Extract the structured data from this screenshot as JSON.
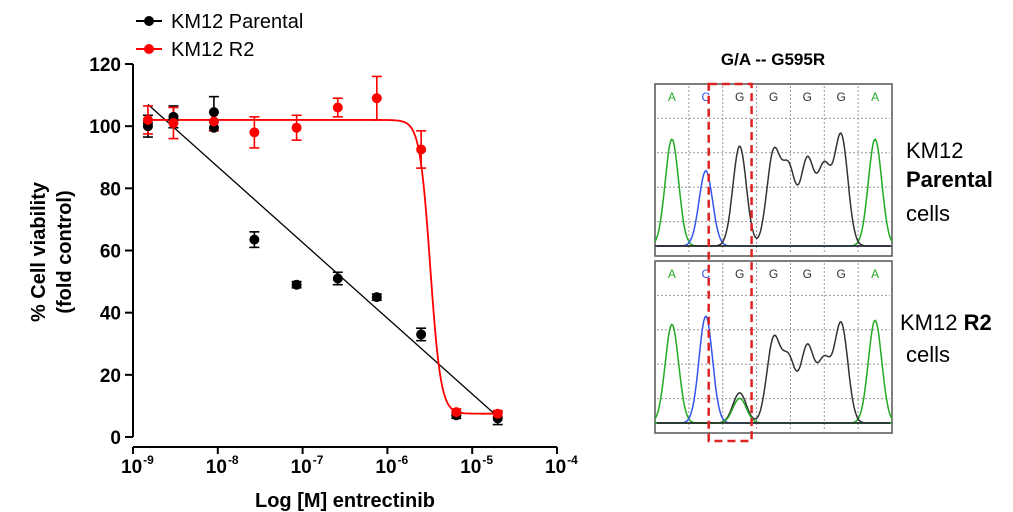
{
  "chart_data": [
    {
      "type": "scatter",
      "xlabel": "Log [M] entrectinib",
      "ylabel_line1": "% Cell viability",
      "ylabel_line2": "(fold control)",
      "x_scale": "log",
      "xlim": [
        1e-09,
        0.0001
      ],
      "ylim": [
        0,
        120
      ],
      "yticks": [
        "0",
        "20",
        "40",
        "60",
        "80",
        "100",
        "120"
      ],
      "xticks": [
        {
          "base": "10",
          "exp": "-9"
        },
        {
          "base": "10",
          "exp": "-8"
        },
        {
          "base": "10",
          "exp": "-7"
        },
        {
          "base": "10",
          "exp": "-6"
        },
        {
          "base": "10",
          "exp": "-5"
        },
        {
          "base": "10",
          "exp": "-4"
        }
      ],
      "legend_position": "top-left",
      "series": [
        {
          "name": "KM12 Parental",
          "color": "#000000",
          "x": [
            1.5e-09,
            3e-09,
            9e-09,
            2.7e-08,
            8.5e-08,
            2.6e-07,
            7.5e-07,
            2.5e-06,
            6.5e-06,
            2e-05
          ],
          "y": [
            100,
            103,
            104.5,
            63.5,
            49,
            51,
            45,
            33,
            7,
            6
          ],
          "err": [
            3.5,
            3.5,
            5,
            2.5,
            1,
            2,
            1,
            2,
            1,
            2
          ],
          "extra_points": [
            {
              "x": 1.5e-09,
              "y": 101
            },
            {
              "x": 3e-09,
              "y": 102
            },
            {
              "x": 9e-09,
              "y": 99.5
            }
          ],
          "fit": {
            "type": "linear",
            "from": [
              1.5e-09,
              107
            ],
            "to": [
              2e-05,
              6.5
            ]
          }
        },
        {
          "name": "KM12 R2",
          "color": "#ff0000",
          "x": [
            1.5e-09,
            3e-09,
            9e-09,
            2.7e-08,
            8.5e-08,
            2.6e-07,
            7.5e-07,
            2.5e-06,
            6.5e-06,
            2e-05
          ],
          "y": [
            102,
            101,
            101.5,
            98,
            99.5,
            106,
            109,
            92.5,
            8,
            7.5
          ],
          "err": [
            4.5,
            5,
            3,
            5,
            4,
            3,
            7,
            6,
            1,
            1
          ],
          "fit": {
            "type": "sigmoid",
            "top": 102,
            "bottom": 7.5,
            "ic50": 3.2e-06,
            "hill": 7
          }
        }
      ]
    }
  ],
  "sequencing": {
    "title": "G/A -- G595R",
    "bases": [
      "A",
      "C",
      "G",
      "G",
      "G",
      "G",
      "A"
    ],
    "base_colors": {
      "A": "#22aa22",
      "C": "#3355ee",
      "G": "#333333",
      "T": "#dd2222"
    },
    "panels": [
      {
        "label_pre": "KM12",
        "label_bold": "Parental",
        "label_post": "cells"
      },
      {
        "label_pre": "KM12",
        "label_bold": "R2",
        "label_post": "cells"
      }
    ],
    "highlight_color": "#dd2222",
    "grid_color": "#999999"
  }
}
